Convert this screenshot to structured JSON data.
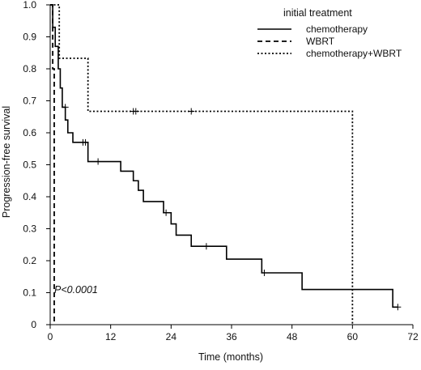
{
  "chart_data": {
    "type": "line",
    "title": "",
    "xlabel": "Time (months)",
    "ylabel": "Progression-free survival",
    "xlim": [
      0,
      72
    ],
    "ylim": [
      0,
      1.0
    ],
    "xticks": [
      "0",
      "12",
      "24",
      "36",
      "48",
      "60",
      "72"
    ],
    "yticks": [
      "0",
      "0.1",
      "0.2",
      "0.3",
      "0.4",
      "0.5",
      "0.6",
      "0.7",
      "0.8",
      "0.9",
      "1.0"
    ],
    "legend": {
      "title": "initial treatment",
      "placement": "top-right"
    },
    "annotation": "P<0.0001",
    "series": [
      {
        "name": "chemotherapy",
        "style": "solid",
        "color": "#000000",
        "steps": [
          [
            0,
            1.0
          ],
          [
            0.5,
            0.93
          ],
          [
            1,
            0.87
          ],
          [
            1.6,
            0.8
          ],
          [
            2,
            0.74
          ],
          [
            2.4,
            0.68
          ],
          [
            3,
            0.64
          ],
          [
            3.5,
            0.6
          ],
          [
            4.5,
            0.57
          ],
          [
            7.5,
            0.51
          ],
          [
            14,
            0.48
          ],
          [
            16.5,
            0.45
          ],
          [
            17.5,
            0.42
          ],
          [
            18.5,
            0.385
          ],
          [
            22.5,
            0.35
          ],
          [
            24,
            0.315
          ],
          [
            25,
            0.28
          ],
          [
            28,
            0.245
          ],
          [
            35,
            0.205
          ],
          [
            42,
            0.162
          ],
          [
            50,
            0.11
          ],
          [
            68,
            0.055
          ],
          [
            69,
            0.055
          ]
        ],
        "censored": [
          [
            3,
            0.68
          ],
          [
            6.5,
            0.57
          ],
          [
            7,
            0.57
          ],
          [
            9.5,
            0.51
          ],
          [
            23,
            0.35
          ],
          [
            31,
            0.245
          ],
          [
            42.5,
            0.162
          ],
          [
            69,
            0.055
          ]
        ]
      },
      {
        "name": "WBRT",
        "style": "dashed",
        "color": "#000000",
        "steps": [
          [
            0,
            1.0
          ],
          [
            0.5,
            0.8
          ],
          [
            0.8,
            0.0
          ]
        ],
        "censored": []
      },
      {
        "name": "chemotherapy+WBRT",
        "style": "dotted",
        "color": "#000000",
        "steps": [
          [
            0,
            1.0
          ],
          [
            1.8,
            0.833
          ],
          [
            7.5,
            0.667
          ],
          [
            60,
            0.0
          ]
        ],
        "censored": [
          [
            16.5,
            0.667
          ],
          [
            17,
            0.667
          ],
          [
            28,
            0.667
          ]
        ]
      }
    ]
  }
}
